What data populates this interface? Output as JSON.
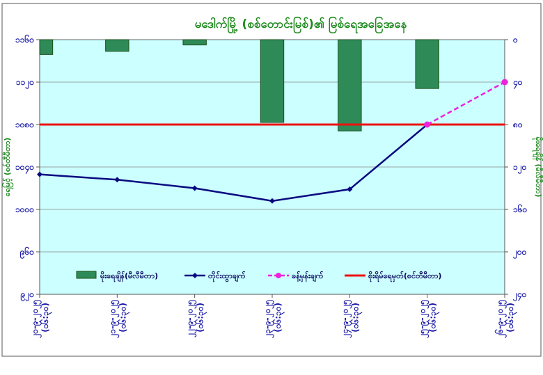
{
  "chart_data": {
    "type": "bar+line",
    "title": "မဒေါက်မြို့ (စစ်တောင်းမြစ်)၏ မြစ်ရေအခြေအနေ",
    "xlabel": "",
    "ylabel_left": "ရေမြင့် (စင်တီမီတာ)",
    "ylabel_right": "မိုးရေချိန် (မီလီမီတာ)",
    "categories": [
      [
        "၂၀-၉-၂၀၂၅",
        "(၀၆:၃၀)"
      ],
      [
        "၂၁-၉-၂၀၂၅",
        "(၀၆:၃၀)"
      ],
      [
        "၂၂-၉-၂၀၂၅",
        "(၀၆:၃၀)"
      ],
      [
        "၂၃-၉-၂၀၂၅",
        "(၀၆:၃၀)"
      ],
      [
        "၂၄-၉-၂၀၂၅",
        "(၀၆:၃၀)"
      ],
      [
        "၂၅-၉-၂၀၂၅",
        "(၀၆:၃၀)"
      ],
      [
        "၂၆-၉-၂၀၂၅",
        "(၀၆:၃၀)"
      ]
    ],
    "ylim_left": [
      920,
      1160
    ],
    "ylim_right": [
      0,
      240
    ],
    "yticks_left": [
      {
        "value": 920,
        "label": "၉၂၀"
      },
      {
        "value": 960,
        "label": "၉၆၀"
      },
      {
        "value": 1000,
        "label": "၁၀၀၀"
      },
      {
        "value": 1040,
        "label": "၁၀၄၀"
      },
      {
        "value": 1080,
        "label": "၁၀၈၀"
      },
      {
        "value": 1120,
        "label": "၁၁၂၀"
      },
      {
        "value": 1160,
        "label": "၁၁၆၀"
      }
    ],
    "yticks_right": [
      {
        "value": 0,
        "label": "၀"
      },
      {
        "value": 40,
        "label": "၄၀"
      },
      {
        "value": 80,
        "label": "၈၀"
      },
      {
        "value": 120,
        "label": "၁၂၀"
      },
      {
        "value": 160,
        "label": "၁၆၀"
      },
      {
        "value": 200,
        "label": "၂၀၀"
      },
      {
        "value": 240,
        "label": "၂၄၀"
      }
    ],
    "series": [
      {
        "name": "မိုးရေချိန်(မီလီမီတာ)",
        "kind": "bar",
        "axis": "right",
        "color": "#2e8b57",
        "values": [
          14,
          11,
          5,
          78,
          86,
          46,
          null
        ]
      },
      {
        "name": "တိုင်းထွာချက်",
        "kind": "line",
        "axis": "left",
        "color": "#0a0a80",
        "values": [
          1033,
          1028,
          1020,
          1008,
          1019,
          1080,
          null
        ]
      },
      {
        "name": "ခန့်မှန်းချက်",
        "kind": "dashed-line",
        "axis": "left",
        "color": "#ee22dd",
        "values": [
          null,
          null,
          null,
          null,
          null,
          1080,
          1120
        ]
      },
      {
        "name": "စိုးရိမ်ရေမှတ်(စင်တီမီတာ)",
        "kind": "hline",
        "axis": "left",
        "color": "#ee1111",
        "value": 1080
      }
    ],
    "legend_position": "bottom-inside",
    "grid": true,
    "colors": {
      "plot_bg": "#ccffff",
      "title": "#1e8a1e",
      "axis_label": "#1e8a1e",
      "tick_label": "#1a1aa8",
      "gridline": "#888888"
    }
  }
}
